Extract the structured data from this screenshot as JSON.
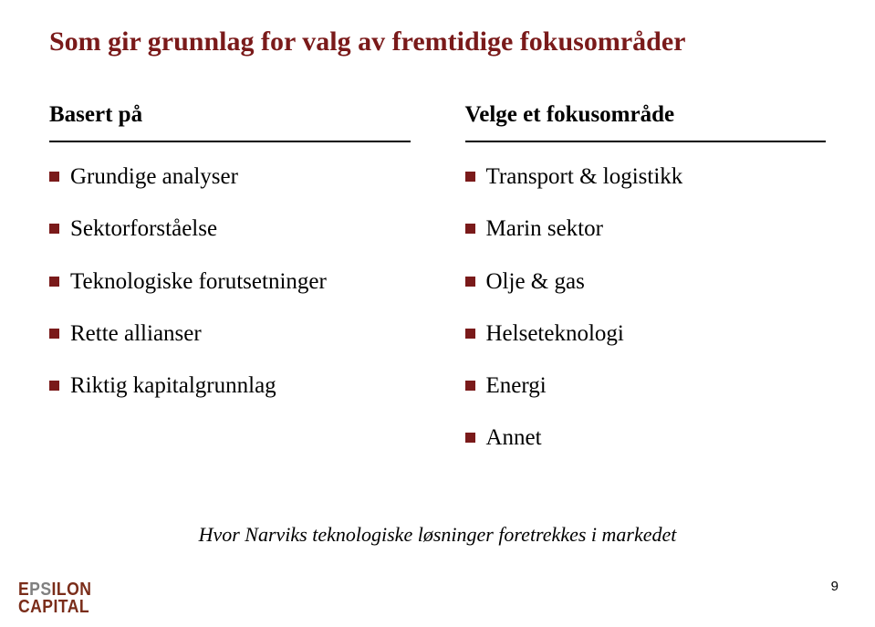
{
  "title": "Som gir grunnlag for valg av fremtidige fokusområder",
  "columns": {
    "left": {
      "header": "Basert på",
      "items": [
        "Grundige analyser",
        "Sektorforståelse",
        "Teknologiske forutsetninger",
        "Rette allianser",
        "Riktig kapitalgrunnlag"
      ]
    },
    "right": {
      "header": "Velge et fokusområde",
      "items": [
        "Transport & logistikk",
        "Marin sektor",
        "Olje & gas",
        "Helseteknologi",
        "Energi",
        "Annet"
      ]
    }
  },
  "footnote": "Hvor Narviks teknologiske løsninger foretrekkes i markedet",
  "page_number": "9",
  "logo": {
    "line1_part1": "E",
    "line1_part2": "PS",
    "line1_part3": "ILON",
    "line2": "CAPITAL"
  },
  "style": {
    "accent_color": "#7a1a1a",
    "text_color": "#000000",
    "background": "#ffffff",
    "title_fontsize": 30,
    "header_fontsize": 25,
    "item_fontsize": 25,
    "footnote_fontsize": 22,
    "bullet_size": 11,
    "rule_color": "#000000",
    "font_family": "Garamond serif"
  }
}
